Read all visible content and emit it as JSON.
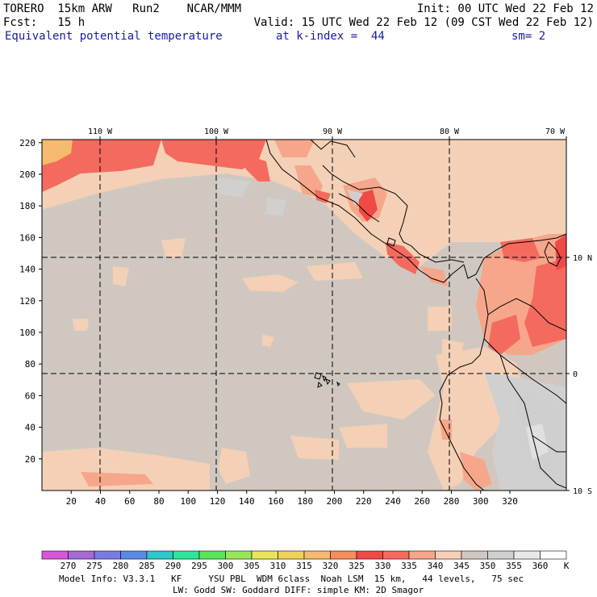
{
  "header": {
    "model": "TORERO  15km ARW   Run2    NCAR/MMM",
    "init": "Init: 00 UTC Wed 22 Feb 12",
    "fcst": "Fcst:   15 h",
    "valid": "Valid: 15 UTC Wed 22 Feb 12 (09 CST Wed 22 Feb 12)",
    "field": "Equivalent potential temperature",
    "level": "at k-index =  44",
    "smooth": "sm= 2"
  },
  "map": {
    "lon_labels": [
      "110 W",
      "100 W",
      "90 W",
      "80 W",
      "70 W"
    ],
    "lat_labels": [
      "10 N",
      "0",
      "10 S"
    ],
    "y_ticks": [
      "20",
      "40",
      "60",
      "80",
      "100",
      "120",
      "140",
      "160",
      "180",
      "200",
      "220"
    ],
    "x_ticks": [
      "20",
      "40",
      "60",
      "80",
      "100",
      "120",
      "140",
      "160",
      "180",
      "200",
      "220",
      "240",
      "260",
      "280",
      "300",
      "320"
    ]
  },
  "colorbar": {
    "labels": [
      "270",
      "275",
      "280",
      "285",
      "290",
      "295",
      "300",
      "305",
      "310",
      "315",
      "320",
      "325",
      "330",
      "335",
      "340",
      "345",
      "350",
      "355",
      "360"
    ],
    "unit": "K",
    "colors": [
      "#d856d8",
      "#a46ad8",
      "#7a7ae6",
      "#5a8ae6",
      "#2ec8c8",
      "#2ee69a",
      "#5ae65a",
      "#9ae65a",
      "#e6e65a",
      "#f0d25a",
      "#f6ba6e",
      "#f68e5a",
      "#f04a46",
      "#f46a5e",
      "#f6a68a",
      "#f4d0b6",
      "#d0c8c0",
      "#d0d0d0",
      "#e8e8e8",
      "#ffffff"
    ]
  },
  "footer": {
    "line1": "Model Info: V3.3.1   KF     YSU PBL  WDM 6class  Noah LSM  15 km,   44 levels,   75 sec",
    "line2": "LW: Godd SW: Goddard DIFF: simple KM: 2D Smagor"
  }
}
